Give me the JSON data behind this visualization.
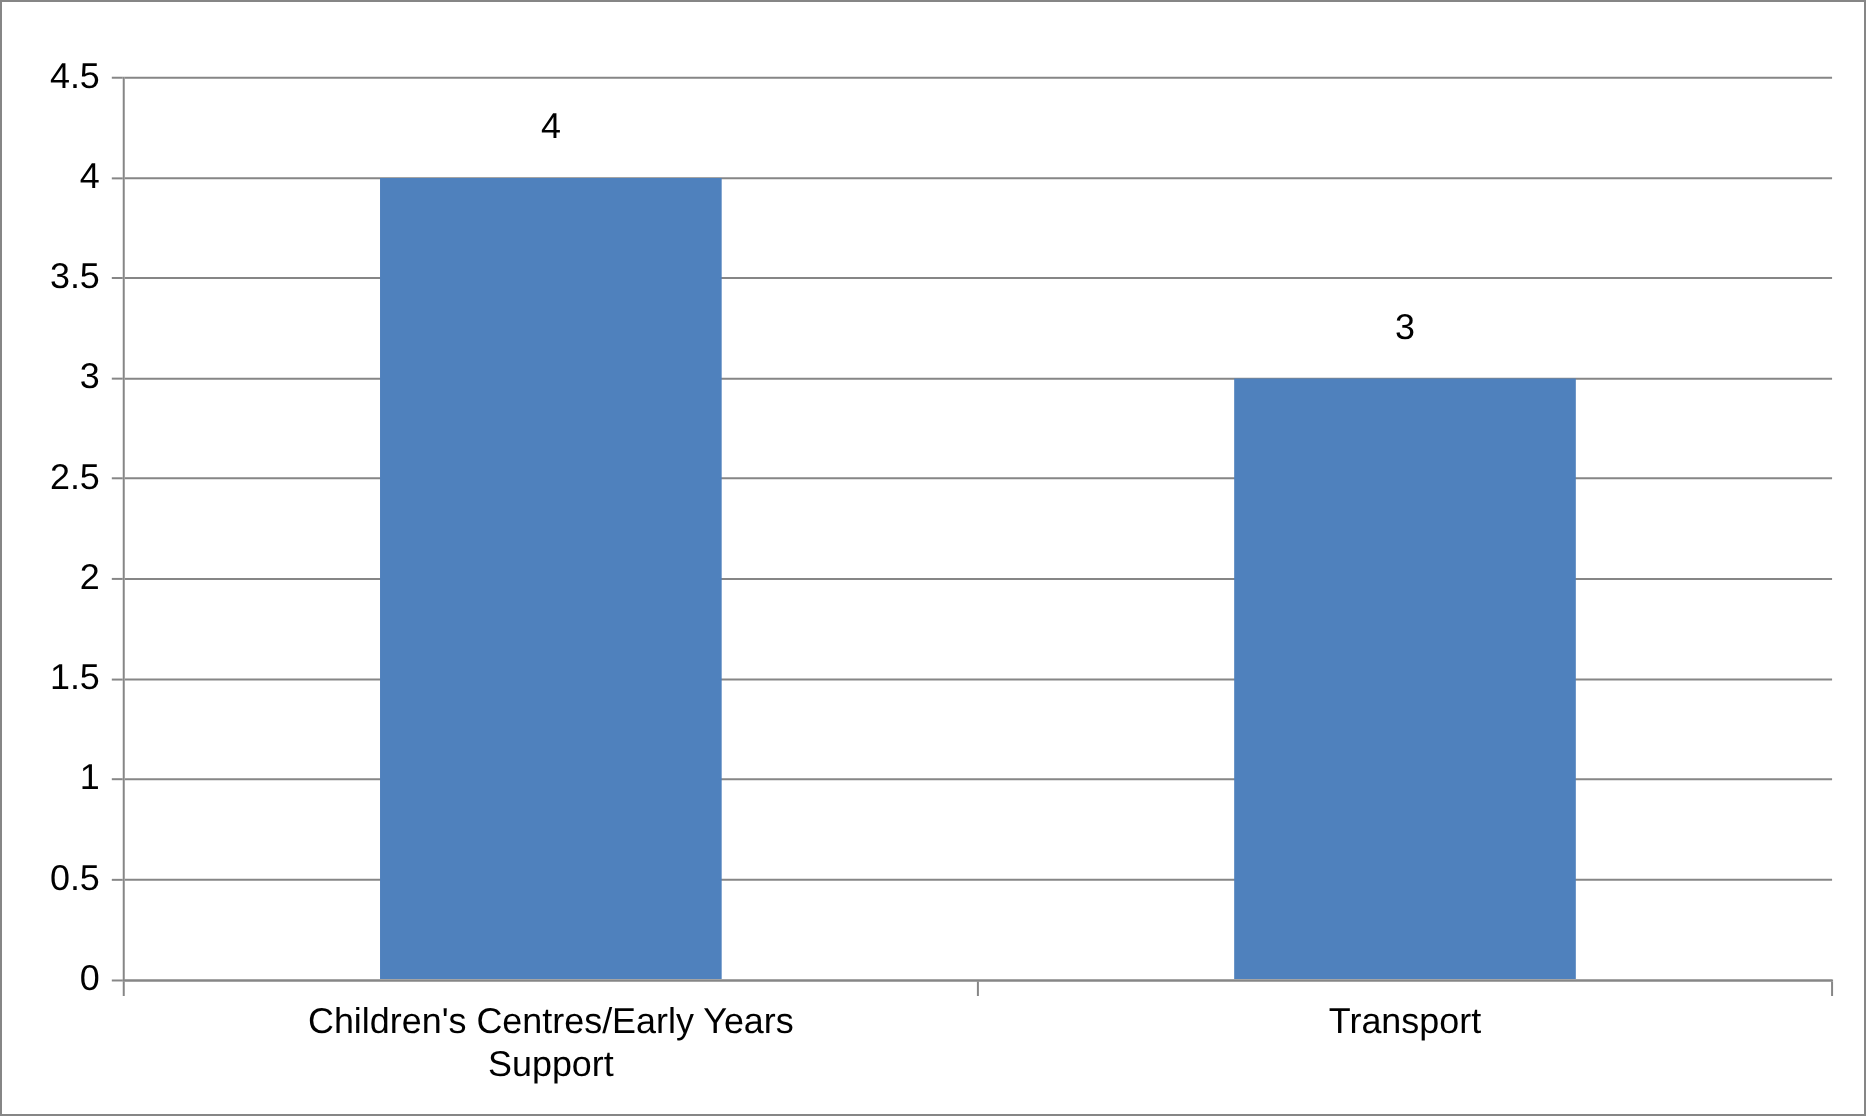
{
  "chart_data": {
    "type": "bar",
    "categories": [
      "Children's Centres/Early Years Support",
      "Transport"
    ],
    "values": [
      4,
      3
    ],
    "color": "#4f81bd",
    "ylim": [
      0,
      4.5
    ],
    "yticks": [
      0,
      0.5,
      1,
      1.5,
      2,
      2.5,
      3,
      3.5,
      4,
      4.5
    ],
    "grid": "y",
    "data_labels": true,
    "legend": false
  }
}
